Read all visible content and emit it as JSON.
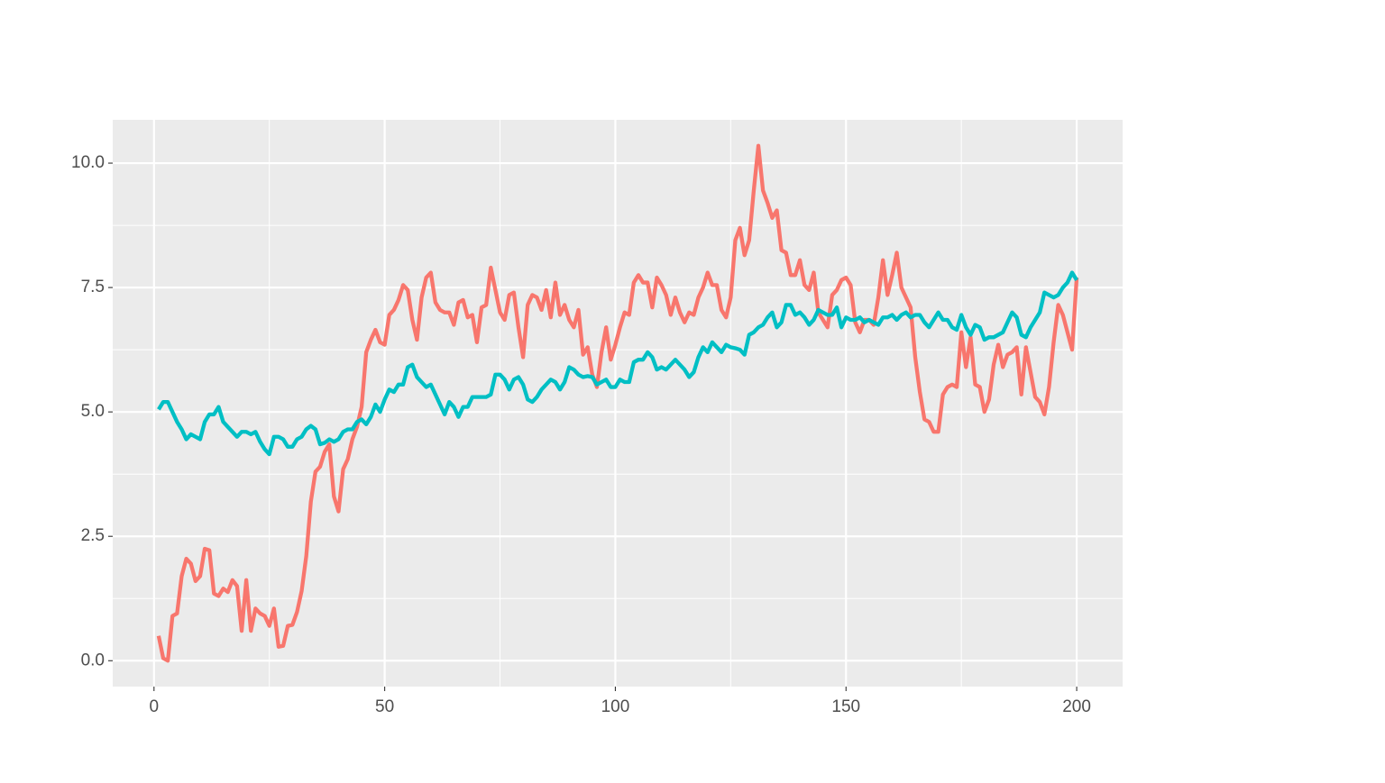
{
  "chart_data": {
    "type": "line",
    "x": [
      1,
      2,
      3,
      4,
      5,
      6,
      7,
      8,
      9,
      10,
      11,
      12,
      13,
      14,
      15,
      16,
      17,
      18,
      19,
      20,
      21,
      22,
      23,
      24,
      25,
      26,
      27,
      28,
      29,
      30,
      31,
      32,
      33,
      34,
      35,
      36,
      37,
      38,
      39,
      40,
      41,
      42,
      43,
      44,
      45,
      46,
      47,
      48,
      49,
      50,
      51,
      52,
      53,
      54,
      55,
      56,
      57,
      58,
      59,
      60,
      61,
      62,
      63,
      64,
      65,
      66,
      67,
      68,
      69,
      70,
      71,
      72,
      73,
      74,
      75,
      76,
      77,
      78,
      79,
      80,
      81,
      82,
      83,
      84,
      85,
      86,
      87,
      88,
      89,
      90,
      91,
      92,
      93,
      94,
      95,
      96,
      97,
      98,
      99,
      100,
      101,
      102,
      103,
      104,
      105,
      106,
      107,
      108,
      109,
      110,
      111,
      112,
      113,
      114,
      115,
      116,
      117,
      118,
      119,
      120,
      121,
      122,
      123,
      124,
      125,
      126,
      127,
      128,
      129,
      130,
      131,
      132,
      133,
      134,
      135,
      136,
      137,
      138,
      139,
      140,
      141,
      142,
      143,
      144,
      145,
      146,
      147,
      148,
      149,
      150,
      151,
      152,
      153,
      154,
      155,
      156,
      157,
      158,
      159,
      160,
      161,
      162,
      163,
      164,
      165,
      166,
      167,
      168,
      169,
      170,
      171,
      172,
      173,
      174,
      175,
      176,
      177,
      178,
      179,
      180,
      181,
      182,
      183,
      184,
      185,
      186,
      187,
      188,
      189,
      190,
      191,
      192,
      193,
      194,
      195,
      196,
      197,
      198,
      199,
      200
    ],
    "series": [
      {
        "color": "#f8766d",
        "values": [
          0.5,
          0.05,
          0.0,
          0.9,
          0.95,
          1.7,
          2.05,
          1.95,
          1.6,
          1.7,
          2.25,
          2.22,
          1.35,
          1.3,
          1.45,
          1.38,
          1.62,
          1.5,
          0.6,
          1.62,
          0.6,
          1.05,
          0.95,
          0.9,
          0.7,
          1.05,
          0.28,
          0.3,
          0.7,
          0.72,
          0.98,
          1.4,
          2.1,
          3.2,
          3.8,
          3.9,
          4.2,
          4.35,
          3.3,
          3.0,
          3.85,
          4.05,
          4.45,
          4.7,
          5.1,
          6.2,
          6.45,
          6.65,
          6.4,
          6.35,
          6.95,
          7.05,
          7.25,
          7.55,
          7.45,
          6.85,
          6.45,
          7.3,
          7.7,
          7.8,
          7.2,
          7.05,
          7.0,
          7.0,
          6.75,
          7.2,
          7.25,
          6.9,
          6.95,
          6.4,
          7.1,
          7.15,
          7.9,
          7.45,
          7.0,
          6.85,
          7.35,
          7.4,
          6.7,
          6.1,
          7.15,
          7.35,
          7.3,
          7.05,
          7.45,
          6.9,
          7.6,
          6.95,
          7.15,
          6.85,
          6.7,
          7.05,
          6.15,
          6.3,
          5.75,
          5.5,
          6.2,
          6.7,
          6.05,
          6.35,
          6.7,
          7.0,
          6.95,
          7.6,
          7.75,
          7.6,
          7.6,
          7.1,
          7.7,
          7.55,
          7.35,
          6.95,
          7.3,
          7.0,
          6.8,
          7.0,
          6.95,
          7.3,
          7.5,
          7.8,
          7.55,
          7.55,
          7.05,
          6.9,
          7.3,
          8.45,
          8.7,
          8.15,
          8.45,
          9.45,
          10.35,
          9.45,
          9.2,
          8.9,
          9.05,
          8.25,
          8.2,
          7.75,
          7.75,
          8.05,
          7.55,
          7.45,
          7.8,
          7.0,
          6.85,
          6.7,
          7.35,
          7.45,
          7.65,
          7.7,
          7.55,
          6.8,
          6.6,
          6.85,
          6.85,
          6.75,
          7.3,
          8.05,
          7.35,
          7.75,
          8.2,
          7.5,
          7.3,
          7.1,
          6.1,
          5.4,
          4.85,
          4.8,
          4.6,
          4.6,
          5.35,
          5.5,
          5.55,
          5.5,
          6.6,
          5.9,
          6.5,
          5.55,
          5.5,
          5.0,
          5.25,
          5.95,
          6.35,
          5.9,
          6.15,
          6.2,
          6.3,
          5.35,
          6.3,
          5.8,
          5.3,
          5.2,
          4.95,
          5.5,
          6.4,
          7.15,
          6.95,
          6.6,
          6.25,
          7.7
        ]
      },
      {
        "color": "#00bfc4",
        "values": [
          5.05,
          5.2,
          5.2,
          5.0,
          4.8,
          4.65,
          4.45,
          4.55,
          4.5,
          4.45,
          4.8,
          4.95,
          4.95,
          5.1,
          4.8,
          4.7,
          4.6,
          4.5,
          4.6,
          4.6,
          4.55,
          4.6,
          4.4,
          4.25,
          4.15,
          4.5,
          4.5,
          4.45,
          4.3,
          4.3,
          4.45,
          4.5,
          4.65,
          4.72,
          4.65,
          4.35,
          4.38,
          4.45,
          4.4,
          4.45,
          4.6,
          4.65,
          4.65,
          4.8,
          4.85,
          4.75,
          4.9,
          5.15,
          5.0,
          5.25,
          5.45,
          5.4,
          5.55,
          5.55,
          5.9,
          5.95,
          5.7,
          5.6,
          5.5,
          5.55,
          5.35,
          5.15,
          4.95,
          5.2,
          5.1,
          4.9,
          5.1,
          5.1,
          5.3,
          5.3,
          5.3,
          5.3,
          5.35,
          5.75,
          5.75,
          5.65,
          5.45,
          5.65,
          5.7,
          5.55,
          5.25,
          5.2,
          5.3,
          5.45,
          5.55,
          5.65,
          5.6,
          5.45,
          5.6,
          5.9,
          5.85,
          5.75,
          5.7,
          5.72,
          5.7,
          5.55,
          5.6,
          5.65,
          5.5,
          5.5,
          5.65,
          5.6,
          5.6,
          6.0,
          6.05,
          6.05,
          6.2,
          6.1,
          5.85,
          5.9,
          5.85,
          5.95,
          6.05,
          5.95,
          5.85,
          5.7,
          5.8,
          6.1,
          6.3,
          6.2,
          6.4,
          6.3,
          6.2,
          6.35,
          6.3,
          6.28,
          6.25,
          6.15,
          6.55,
          6.6,
          6.7,
          6.75,
          6.9,
          7.0,
          6.7,
          6.8,
          7.15,
          7.15,
          6.95,
          7.0,
          6.9,
          6.75,
          6.85,
          7.05,
          7.0,
          6.95,
          6.95,
          7.1,
          6.7,
          6.9,
          6.85,
          6.85,
          6.9,
          6.8,
          6.85,
          6.8,
          6.75,
          6.9,
          6.9,
          6.95,
          6.85,
          6.95,
          7.0,
          6.9,
          6.95,
          6.95,
          6.8,
          6.7,
          6.85,
          7.0,
          6.85,
          6.85,
          6.7,
          6.65,
          6.95,
          6.7,
          6.55,
          6.75,
          6.7,
          6.45,
          6.5,
          6.5,
          6.55,
          6.6,
          6.8,
          7.0,
          6.9,
          6.55,
          6.5,
          6.7,
          6.85,
          7.0,
          7.4,
          7.35,
          7.3,
          7.35,
          7.5,
          7.6,
          7.8,
          7.65
        ]
      }
    ],
    "xlim": [
      -8.95,
      209.95
    ],
    "xticks": [
      0,
      50,
      100,
      150,
      200
    ],
    "xminor": [
      25,
      75,
      125,
      175
    ],
    "ylim": [
      -0.52,
      10.87
    ],
    "yticks": [
      {
        "value": 0,
        "label": "0.0"
      },
      2.5,
      {
        "value": 5,
        "label": "5.0"
      },
      7.5,
      {
        "value": 10,
        "label": "10.0"
      }
    ],
    "yminor": [
      1.25,
      3.75,
      6.25,
      8.75
    ],
    "grid": true,
    "panel_color": "#ebebeb"
  }
}
